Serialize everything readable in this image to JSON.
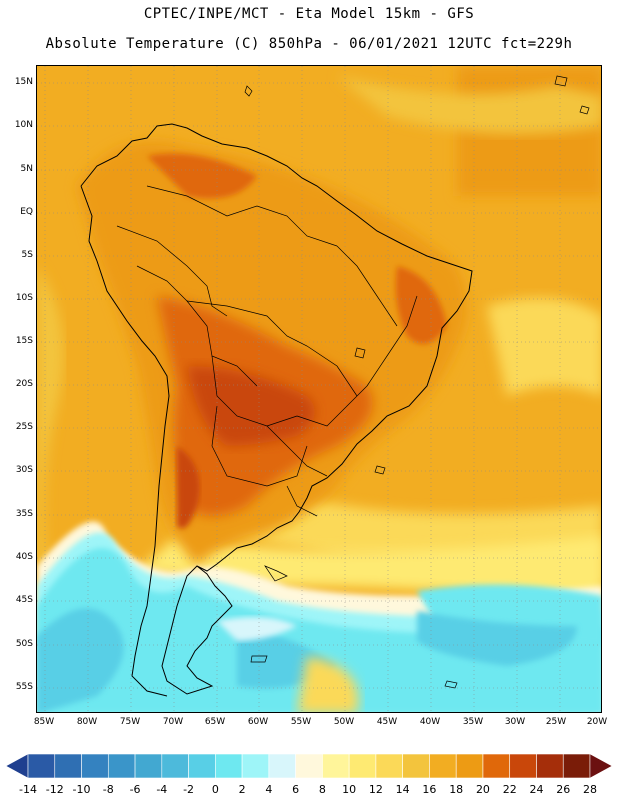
{
  "header": {
    "line1": "CPTEC/INPE/MCT -  Eta Model 15km - GFS",
    "line2": "Absolute Temperature (C) 850hPa - 06/01/2021 12UTC fct=229h"
  },
  "map": {
    "lat_labels": [
      "15N",
      "10N",
      "5N",
      "EQ",
      "5S",
      "10S",
      "15S",
      "20S",
      "25S",
      "30S",
      "35S",
      "40S",
      "45S",
      "50S",
      "55S"
    ],
    "lon_labels": [
      "85W",
      "80W",
      "75W",
      "70W",
      "65W",
      "60W",
      "55W",
      "50W",
      "45W",
      "40W",
      "35W",
      "30W",
      "25W",
      "20W"
    ]
  },
  "colorbar": {
    "labels": [
      "-14",
      "-12",
      "-10",
      "-8",
      "-6",
      "-4",
      "-2",
      "0",
      "2",
      "4",
      "6",
      "8",
      "10",
      "12",
      "14",
      "16",
      "18",
      "20",
      "22",
      "24",
      "26",
      "28"
    ],
    "colors": [
      "#1f3f8f",
      "#2a5aa6",
      "#2f6fb3",
      "#3482c0",
      "#3a95c9",
      "#42a8d1",
      "#4dbadb",
      "#58cfe6",
      "#6ee8f0",
      "#9ef5f8",
      "#d8f6fb",
      "#fff8dc",
      "#fff59a",
      "#feea72",
      "#fbd958",
      "#f3c43d",
      "#f2ad22",
      "#ed9b14",
      "#e0680a",
      "#c9470a",
      "#a52e0a",
      "#7a1c08",
      "#6b1010"
    ],
    "unit": "C"
  }
}
